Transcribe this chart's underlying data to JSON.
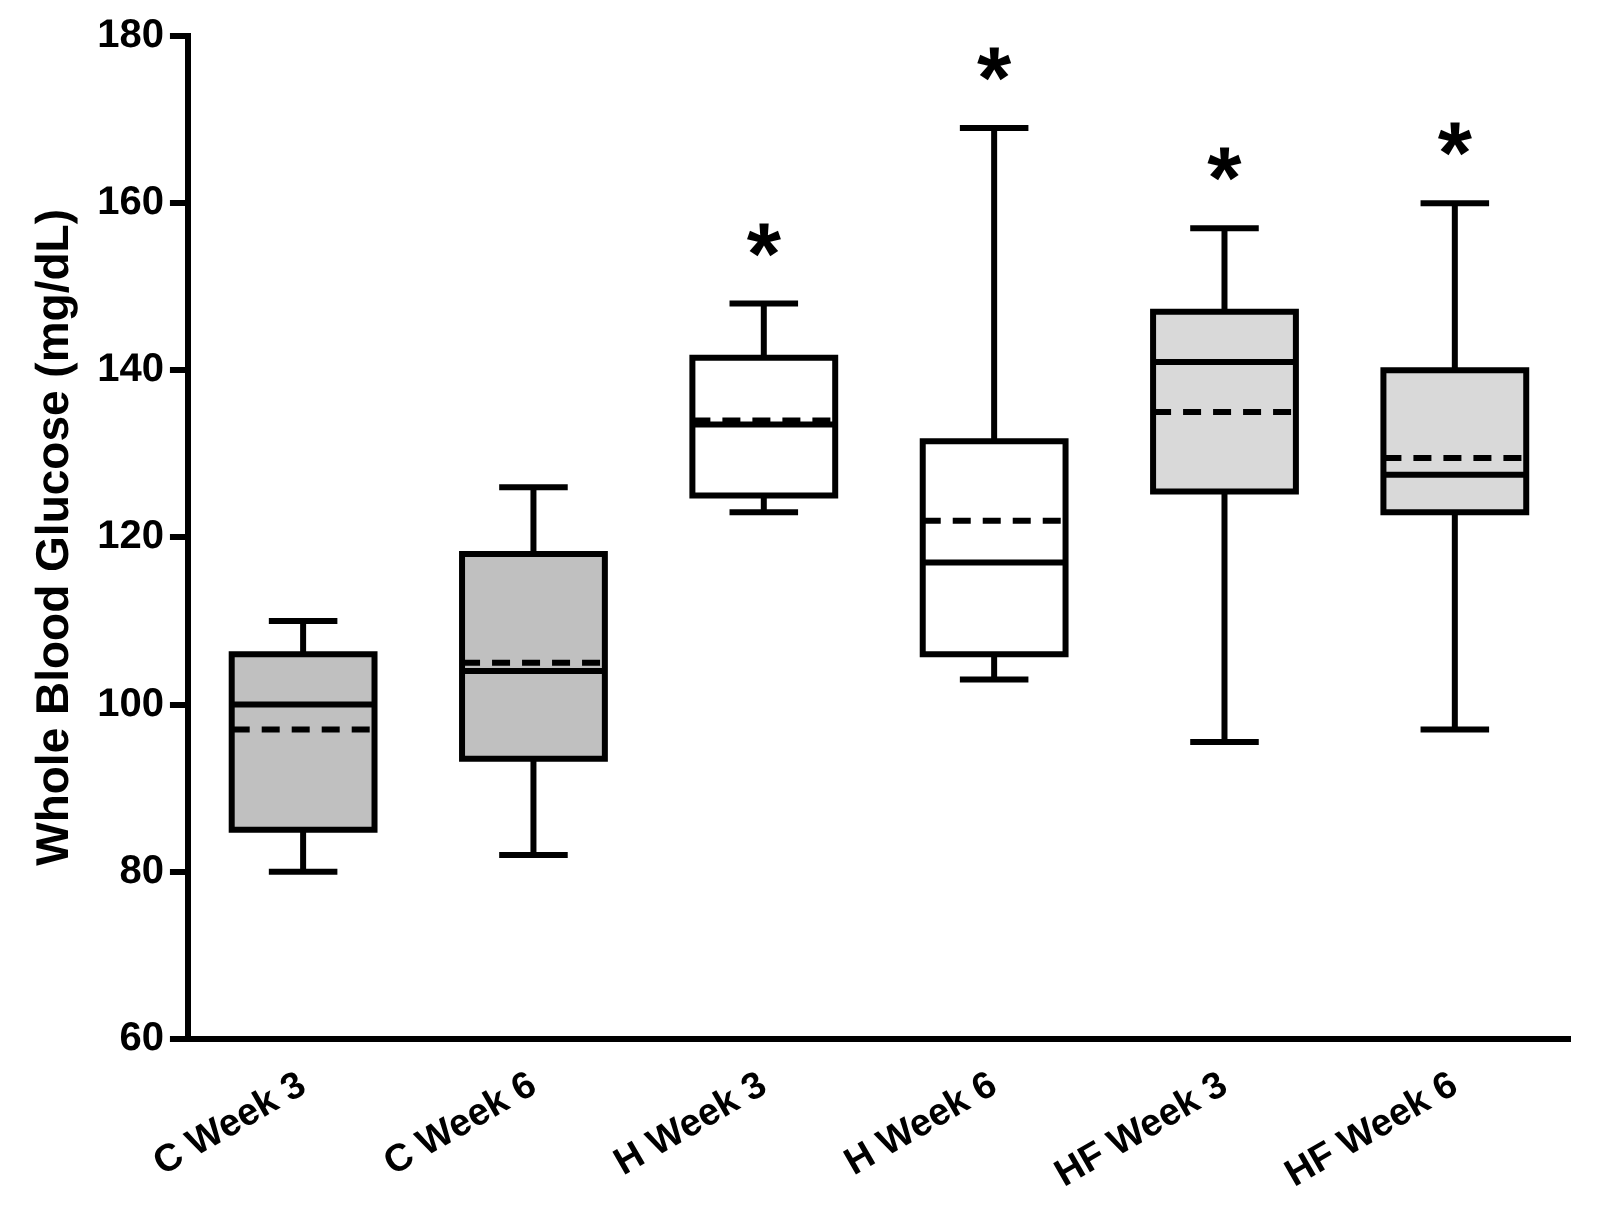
{
  "chart_data": {
    "type": "box",
    "ylabel": "Whole Blood Glucose (mg/dL)",
    "categories": [
      "C Week 3",
      "C Week 6",
      "H Week 3",
      "H Week 6",
      "HF Week 3",
      "HF Week 6"
    ],
    "colors": [
      "#c0c0c0",
      "#c0c0c0",
      "#ffffff",
      "#ffffff",
      "#d9d9d9",
      "#d9d9d9"
    ],
    "boxes": [
      {
        "low": 80,
        "q1": 85,
        "median": 100,
        "q3": 106,
        "high": 110,
        "mean": 97
      },
      {
        "low": 82,
        "q1": 93.5,
        "median": 104,
        "q3": 118,
        "high": 126,
        "mean": 105
      },
      {
        "low": 123,
        "q1": 125,
        "median": 133.5,
        "q3": 141.5,
        "high": 148,
        "mean": 134
      },
      {
        "low": 103,
        "q1": 106,
        "median": 117,
        "q3": 131.5,
        "high": 169,
        "mean": 122
      },
      {
        "low": 95.5,
        "q1": 125.5,
        "median": 141,
        "q3": 147,
        "high": 157,
        "mean": 135
      },
      {
        "low": 97,
        "q1": 123,
        "median": 127.5,
        "q3": 140,
        "high": 160,
        "mean": 129.5
      }
    ],
    "ylim": [
      60,
      180
    ],
    "yticks": [
      60,
      80,
      100,
      120,
      140,
      160,
      180
    ],
    "grid": false,
    "legend": false,
    "annotations": [
      {
        "text": "*",
        "x": "H Week 3",
        "y": 148
      },
      {
        "text": "*",
        "x": "H Week 6",
        "y": 169
      },
      {
        "text": "*",
        "x": "HF Week 3",
        "y": 157
      },
      {
        "text": "*",
        "x": "HF Week 6",
        "y": 160
      }
    ]
  }
}
